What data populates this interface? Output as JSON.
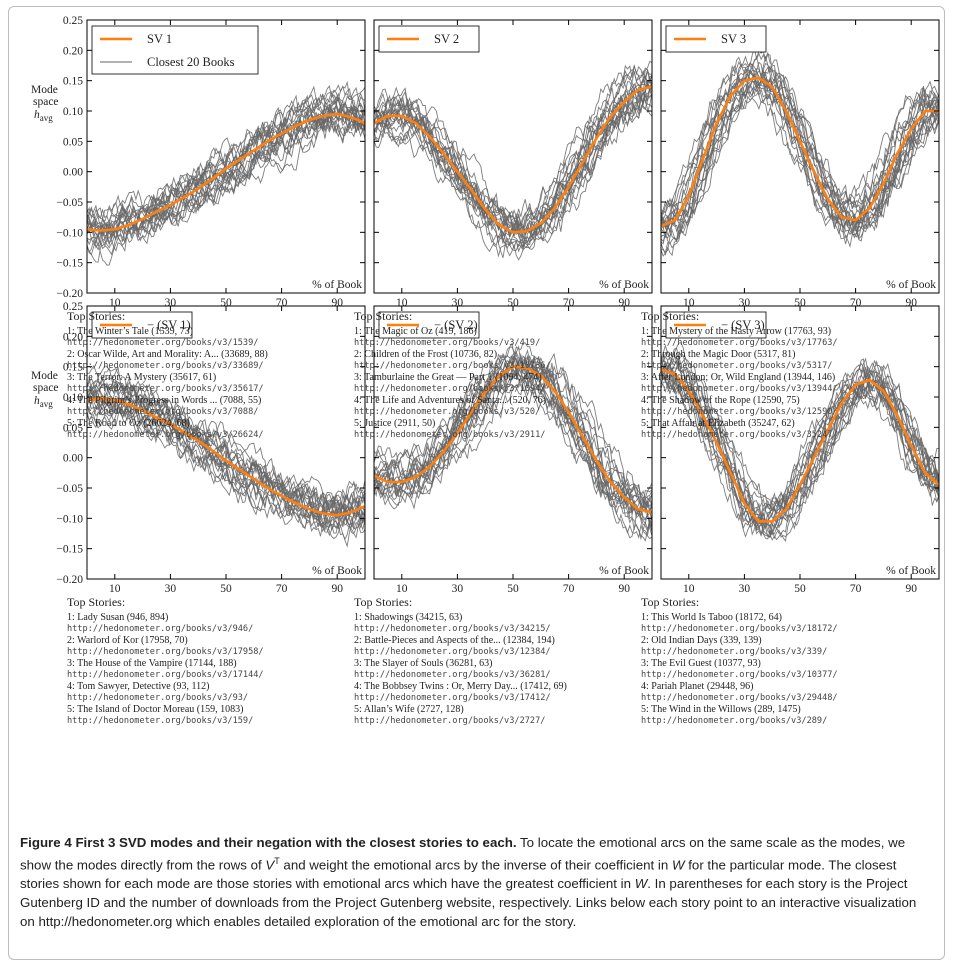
{
  "chart_data": [
    {
      "type": "line",
      "panel_label": "SV 1",
      "legend": [
        "SV 1",
        "Closest 20 Books"
      ],
      "legend_placement": "top-left",
      "ylabel": "Mode space h_avg",
      "xlabel": "% of Book",
      "xticks": [
        "10",
        "30",
        "50",
        "70",
        "90"
      ],
      "yticks": [
        "0.25",
        "0.20",
        "0.15",
        "0.10",
        "0.05",
        "0.00",
        "−0.05",
        "−0.10",
        "−0.15",
        "−0.20"
      ],
      "xlim": [
        0,
        100
      ],
      "ylim": [
        -0.2,
        0.25
      ],
      "series": [
        {
          "name": "SV 1",
          "x": [
            0,
            5,
            10,
            15,
            20,
            25,
            30,
            35,
            40,
            45,
            50,
            55,
            60,
            65,
            70,
            75,
            80,
            85,
            90,
            95,
            100
          ],
          "values": [
            -0.095,
            -0.097,
            -0.095,
            -0.088,
            -0.078,
            -0.066,
            -0.055,
            -0.042,
            -0.028,
            -0.012,
            0.005,
            0.02,
            0.035,
            0.05,
            0.063,
            0.075,
            0.085,
            0.092,
            0.095,
            0.09,
            0.08
          ]
        }
      ],
      "top_stories": {
        "header": "Top Stories:",
        "items": [
          {
            "title": "1: The Winter’s Tale (1539, 73)",
            "url": "http://hedonometer.org/books/v3/1539/"
          },
          {
            "title": "2: Oscar Wilde, Art and Morality: A... (33689, 88)",
            "url": "http://hedonometer.org/books/v3/33689/"
          },
          {
            "title": "3: The Terror: A Mystery (35617, 61)",
            "url": "http://hedonometer.org/books/v3/35617/"
          },
          {
            "title": "4: The Pilgrim’s Progress in Words ... (7088, 55)",
            "url": "http://hedonometer.org/books/v3/7088/"
          },
          {
            "title": "5: The Road to Oz (26624, 68)",
            "url": "http://hedonometer.org/books/v3/26624/"
          }
        ]
      }
    },
    {
      "type": "line",
      "panel_label": "SV 2",
      "legend": [
        "SV 2"
      ],
      "legend_placement": "top-left",
      "xlabel": "% of Book",
      "xticks": [
        "10",
        "30",
        "50",
        "70",
        "90"
      ],
      "xlim": [
        0,
        100
      ],
      "ylim": [
        -0.2,
        0.25
      ],
      "series": [
        {
          "name": "SV 2",
          "x": [
            0,
            5,
            10,
            15,
            20,
            25,
            30,
            35,
            40,
            45,
            50,
            55,
            60,
            65,
            70,
            75,
            80,
            85,
            90,
            95,
            100
          ],
          "values": [
            0.08,
            0.092,
            0.092,
            0.08,
            0.058,
            0.03,
            0.0,
            -0.03,
            -0.062,
            -0.088,
            -0.1,
            -0.098,
            -0.085,
            -0.06,
            -0.025,
            0.015,
            0.055,
            0.09,
            0.115,
            0.135,
            0.14
          ]
        }
      ],
      "top_stories": {
        "header": "Top Stories:",
        "items": [
          {
            "title": "1: The Magic of Oz (419, 186)",
            "url": "http://hedonometer.org/books/v3/419/"
          },
          {
            "title": "2: Children of the Frost (10736, 82)",
            "url": "http://hedonometer.org/books/v3/10736/"
          },
          {
            "title": "3: Tamburlaine the Great — Part 1 (1094, 474)",
            "url": "http://hedonometer.org/books/v3/1094/"
          },
          {
            "title": "4: The Life and Adventures of Santa... (520, 76)",
            "url": "http://hedonometer.org/books/v3/520/"
          },
          {
            "title": "5: Justice (2911, 50)",
            "url": "http://hedonometer.org/books/v3/2911/"
          }
        ]
      }
    },
    {
      "type": "line",
      "panel_label": "SV 3",
      "legend": [
        "SV 3"
      ],
      "legend_placement": "top-left",
      "xlabel": "% of Book",
      "xticks": [
        "10",
        "30",
        "50",
        "70",
        "90"
      ],
      "xlim": [
        0,
        100
      ],
      "ylim": [
        -0.2,
        0.25
      ],
      "series": [
        {
          "name": "SV 3",
          "x": [
            0,
            5,
            10,
            15,
            20,
            25,
            30,
            35,
            40,
            45,
            50,
            55,
            60,
            65,
            70,
            75,
            80,
            85,
            90,
            95,
            100
          ],
          "values": [
            -0.09,
            -0.08,
            -0.04,
            0.02,
            0.08,
            0.125,
            0.15,
            0.155,
            0.14,
            0.1,
            0.05,
            0.0,
            -0.045,
            -0.075,
            -0.08,
            -0.06,
            -0.02,
            0.03,
            0.07,
            0.1,
            0.1
          ]
        }
      ],
      "top_stories": {
        "header": "Top Stories:",
        "items": [
          {
            "title": "1: The Mystery of the Hasty Arrow (17763, 93)",
            "url": "http://hedonometer.org/books/v3/17763/"
          },
          {
            "title": "2: Through the Magic Door (5317, 81)",
            "url": "http://hedonometer.org/books/v3/5317/"
          },
          {
            "title": "3: After London; Or, Wild England (13944, 146)",
            "url": "http://hedonometer.org/books/v3/13944/"
          },
          {
            "title": "4: The Shadow of the Rope (12590, 75)",
            "url": "http://hedonometer.org/books/v3/12590/"
          },
          {
            "title": "5: That Affair at Elizabeth (35247, 62)",
            "url": "http://hedonometer.org/books/v3/35247/"
          }
        ]
      }
    },
    {
      "type": "line",
      "panel_label": "− (SV 1)",
      "legend": [
        "− (SV 1)"
      ],
      "legend_placement": "top-left",
      "ylabel": "Mode space h_avg",
      "xlabel": "% of Book",
      "xticks": [
        "10",
        "30",
        "50",
        "70",
        "90"
      ],
      "yticks": [
        "0.25",
        "0.20",
        "0.15",
        "0.10",
        "0.05",
        "0.00",
        "−0.05",
        "−0.10",
        "−0.15",
        "−0.20"
      ],
      "xlim": [
        0,
        100
      ],
      "ylim": [
        -0.2,
        0.25
      ],
      "series": [
        {
          "name": "− (SV 1)",
          "x": [
            0,
            5,
            10,
            15,
            20,
            25,
            30,
            35,
            40,
            45,
            50,
            55,
            60,
            65,
            70,
            75,
            80,
            85,
            90,
            95,
            100
          ],
          "values": [
            0.095,
            0.097,
            0.095,
            0.088,
            0.078,
            0.066,
            0.055,
            0.042,
            0.028,
            0.012,
            -0.005,
            -0.02,
            -0.035,
            -0.05,
            -0.063,
            -0.075,
            -0.085,
            -0.092,
            -0.095,
            -0.09,
            -0.08
          ]
        }
      ],
      "top_stories": {
        "header": "Top Stories:",
        "items": [
          {
            "title": "1: Lady Susan (946, 894)",
            "url": "http://hedonometer.org/books/v3/946/"
          },
          {
            "title": "2: Warlord of Kor (17958, 70)",
            "url": "http://hedonometer.org/books/v3/17958/"
          },
          {
            "title": "3: The House of the Vampire (17144, 188)",
            "url": "http://hedonometer.org/books/v3/17144/"
          },
          {
            "title": "4: Tom Sawyer, Detective (93, 112)",
            "url": "http://hedonometer.org/books/v3/93/"
          },
          {
            "title": "5: The Island of Doctor Moreau (159, 1083)",
            "url": "http://hedonometer.org/books/v3/159/"
          }
        ]
      }
    },
    {
      "type": "line",
      "panel_label": "− (SV 2)",
      "legend": [
        "− (SV 2)"
      ],
      "legend_placement": "top-left",
      "xlabel": "% of Book",
      "xticks": [
        "10",
        "30",
        "50",
        "70",
        "90"
      ],
      "xlim": [
        0,
        100
      ],
      "ylim": [
        -0.2,
        0.25
      ],
      "series": [
        {
          "name": "− (SV 2)",
          "x": [
            0,
            5,
            10,
            15,
            20,
            25,
            30,
            35,
            40,
            45,
            50,
            55,
            60,
            65,
            70,
            75,
            80,
            85,
            90,
            95,
            100
          ],
          "values": [
            -0.03,
            -0.04,
            -0.04,
            -0.032,
            -0.015,
            0.01,
            0.04,
            0.075,
            0.108,
            0.135,
            0.15,
            0.148,
            0.135,
            0.11,
            0.075,
            0.035,
            -0.005,
            -0.04,
            -0.065,
            -0.085,
            -0.09
          ]
        }
      ],
      "top_stories": {
        "header": "Top Stories:",
        "items": [
          {
            "title": "1: Shadowings (34215, 63)",
            "url": "http://hedonometer.org/books/v3/34215/"
          },
          {
            "title": "2: Battle-Pieces and Aspects of the... (12384, 194)",
            "url": "http://hedonometer.org/books/v3/12384/"
          },
          {
            "title": "3: The Slayer of Souls (36281, 63)",
            "url": "http://hedonometer.org/books/v3/36281/"
          },
          {
            "title": "4: The Bobbsey Twins : Or, Merry Day... (17412, 69)",
            "url": "http://hedonometer.org/books/v3/17412/"
          },
          {
            "title": "5: Allan’s Wife (2727, 128)",
            "url": "http://hedonometer.org/books/v3/2727/"
          }
        ]
      }
    },
    {
      "type": "line",
      "panel_label": "− (SV 3)",
      "legend": [
        "− (SV 3)"
      ],
      "legend_placement": "top-left",
      "xlabel": "% of Book",
      "xticks": [
        "10",
        "30",
        "50",
        "70",
        "90"
      ],
      "xlim": [
        0,
        100
      ],
      "ylim": [
        -0.2,
        0.25
      ],
      "series": [
        {
          "name": "− (SV 3)",
          "x": [
            0,
            5,
            10,
            15,
            20,
            25,
            30,
            35,
            40,
            45,
            50,
            55,
            60,
            65,
            70,
            75,
            80,
            85,
            90,
            95,
            100
          ],
          "values": [
            0.145,
            0.138,
            0.11,
            0.07,
            0.025,
            -0.025,
            -0.075,
            -0.105,
            -0.105,
            -0.085,
            -0.045,
            0.0,
            0.045,
            0.09,
            0.12,
            0.128,
            0.11,
            0.07,
            0.02,
            -0.025,
            -0.045
          ]
        }
      ],
      "top_stories": {
        "header": "Top Stories:",
        "items": [
          {
            "title": "1: This World Is Taboo (18172, 64)",
            "url": "http://hedonometer.org/books/v3/18172/"
          },
          {
            "title": "2: Old Indian Days (339, 139)",
            "url": "http://hedonometer.org/books/v3/339/"
          },
          {
            "title": "3: The Evil Guest (10377, 93)",
            "url": "http://hedonometer.org/books/v3/10377/"
          },
          {
            "title": "4: Pariah Planet (29448, 96)",
            "url": "http://hedonometer.org/books/v3/29448/"
          },
          {
            "title": "5: The Wind in the Willows (289, 1475)",
            "url": "http://hedonometer.org/books/v3/289/"
          }
        ]
      }
    }
  ],
  "colors": {
    "mode_line": "#ff7f0e",
    "book_lines": "#666666",
    "axes": "#000000"
  },
  "caption": {
    "label": "Figure 4",
    "title": "First 3 SVD modes and their negation with the closest stories to each.",
    "text": "To locate the emotional arcs on the same scale as the modes, we show the modes directly from the rows of V^T and weight the emotional arcs by the inverse of their coefficient in W for the particular mode. The closest stories shown for each mode are those stories with emotional arcs which have the greatest coefficient in W. In parentheses for each story is the Project Gutenberg ID and the number of downloads from the Project Gutenberg website, respectively. Links below each story point to an interactive visualization on http://hedonometer.org which enables detailed exploration of the emotional arc for the story.",
    "text_parts": {
      "p1": "To locate the emotional arcs on the same scale as the modes, we show the modes directly from the rows of ",
      "v": "V",
      "sup": "T",
      "p2": " and weight the emotional arcs by the inverse of their coefficient in ",
      "w1": "W",
      "p3": " for the particular mode. The closest stories shown for each mode are those stories with emotional arcs which have the greatest coefficient in ",
      "w2": "W",
      "p4": ". In parentheses for each story is the Project Gutenberg ID and the number of downloads from the Project Gutenberg website, respectively. Links below each story point to an interactive visualization on http://hedonometer.org which enables detailed exploration of the emotional arc for the story."
    }
  }
}
